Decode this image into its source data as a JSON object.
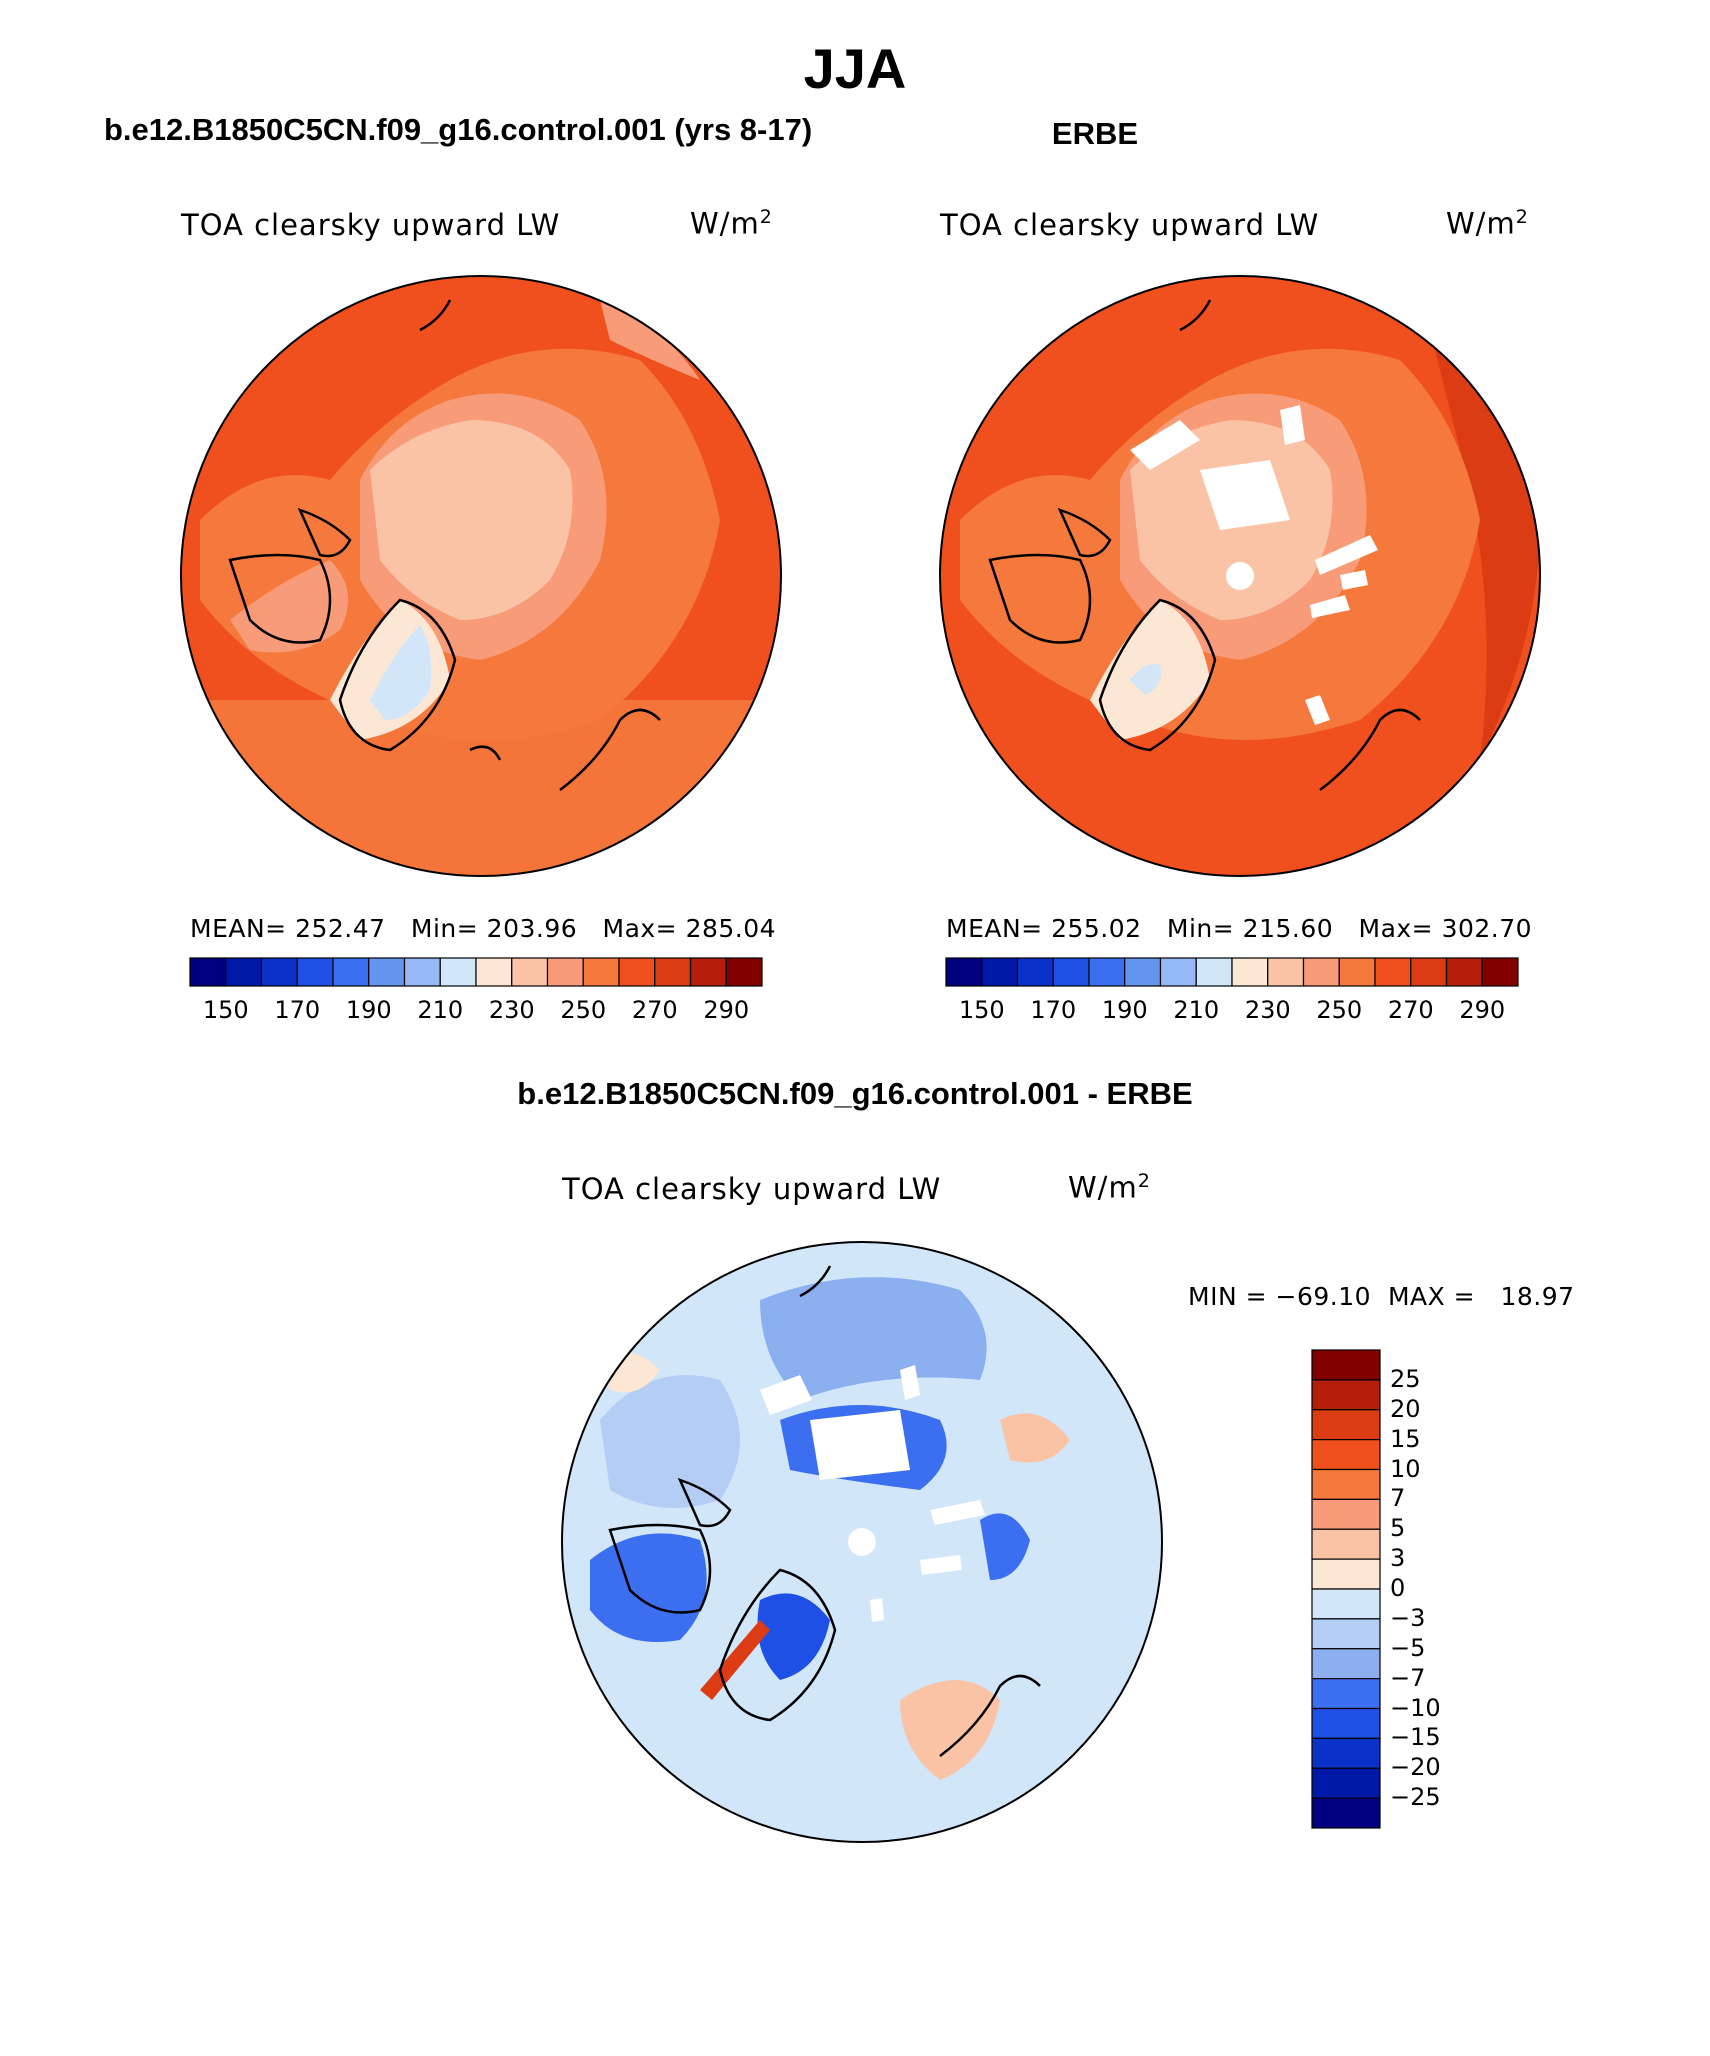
{
  "title": "JJA",
  "panels": [
    {
      "header": "b.e12.B1850C5CN.f09_g16.control.001 (yrs 8-17)",
      "variable": "TOA clearsky upward LW",
      "units_base": "W/m",
      "units_exp": "2",
      "stats": {
        "mean_label": "MEAN=",
        "mean": "252.47",
        "min_label": "Min=",
        "min": "203.96",
        "max_label": "Max=",
        "max": "285.04"
      }
    },
    {
      "header": "ERBE",
      "variable": "TOA clearsky upward LW",
      "units_base": "W/m",
      "units_exp": "2",
      "stats": {
        "mean_label": "MEAN=",
        "mean": "255.02",
        "min_label": "Min=",
        "min": "215.60",
        "max_label": "Max=",
        "max": "302.70"
      }
    }
  ],
  "abs_colorbar": {
    "colors": [
      "#000080",
      "#0018a8",
      "#0a32c8",
      "#1e50e6",
      "#3c6ef0",
      "#6496f0",
      "#96b9f5",
      "#d2e6fa",
      "#fce6d4",
      "#fac3a5",
      "#f89b78",
      "#f5783c",
      "#f0501e",
      "#dc3c14",
      "#b41e0a",
      "#820000"
    ],
    "tick_labels": [
      "150",
      "170",
      "190",
      "210",
      "230",
      "250",
      "270",
      "290"
    ]
  },
  "diff_panel": {
    "header": "b.e12.B1850C5CN.f09_g16.control.001 - ERBE",
    "variable": "TOA clearsky upward LW",
    "units_base": "W/m",
    "units_exp": "2",
    "stats": {
      "min_label": "MIN =",
      "min": "−69.10",
      "max_label": "MAX =",
      "max": "18.97"
    }
  },
  "diff_colorbar": {
    "colors_top_to_bottom": [
      "#820000",
      "#b41e0a",
      "#dc3c14",
      "#f0501e",
      "#f5783c",
      "#f89b78",
      "#fac3a5",
      "#fce6d4",
      "#d2e6fa",
      "#b4cdf5",
      "#8caff0",
      "#3c6ef0",
      "#1e50e6",
      "#0a32c8",
      "#0018a8",
      "#000080"
    ],
    "tick_labels": [
      "25",
      "20",
      "15",
      "10",
      "7",
      "5",
      "3",
      "0",
      "−3",
      "−5",
      "−7",
      "−10",
      "−15",
      "−20",
      "−25"
    ]
  }
}
